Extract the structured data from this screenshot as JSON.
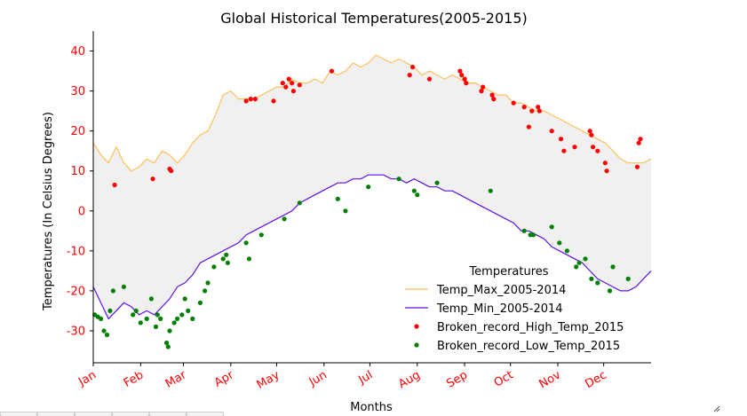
{
  "chart_data": {
    "type": "line",
    "title": "Global Historical Temperatures(2005-2015)",
    "xlabel": "Months",
    "ylabel": "Temperatures (In Celsius Degrees)",
    "ylim": [
      -38,
      45
    ],
    "xlim": [
      0,
      365
    ],
    "yticks": [
      -30,
      -20,
      -10,
      0,
      10,
      20,
      30,
      40
    ],
    "months": [
      "Jan",
      "Feb",
      "Mar",
      "Apr",
      "May",
      "Jun",
      "Jul",
      "Aug",
      "Sep",
      "Oct",
      "Nov",
      "Dec"
    ],
    "month_starts": [
      0,
      31,
      59,
      90,
      120,
      151,
      181,
      212,
      243,
      273,
      304,
      334
    ],
    "legend": {
      "title": "Temperatures",
      "placement": "lower-right"
    },
    "series": [
      {
        "name": "Temp_Max_2005-2014",
        "kind": "line",
        "color": "#ffc05a",
        "x": [
          0,
          5,
          10,
          15,
          20,
          25,
          30,
          35,
          40,
          45,
          50,
          55,
          60,
          65,
          70,
          75,
          80,
          85,
          90,
          95,
          100,
          105,
          110,
          115,
          120,
          125,
          130,
          135,
          140,
          145,
          150,
          155,
          160,
          165,
          170,
          175,
          180,
          185,
          190,
          195,
          200,
          205,
          210,
          215,
          220,
          225,
          230,
          235,
          240,
          245,
          250,
          255,
          260,
          265,
          270,
          275,
          280,
          285,
          290,
          295,
          300,
          305,
          310,
          315,
          320,
          325,
          330,
          335,
          340,
          345,
          350,
          355,
          360,
          365
        ],
        "values": [
          17,
          14,
          12,
          16,
          12,
          10,
          11,
          13,
          12,
          15,
          14,
          12,
          14,
          17,
          19,
          20,
          24,
          29,
          30,
          28,
          28,
          28,
          29,
          30,
          31,
          31,
          33,
          32,
          32,
          33,
          32,
          35,
          34,
          35,
          37,
          36,
          37,
          39,
          38,
          37,
          38,
          37,
          36,
          34,
          35,
          34,
          33,
          34,
          33,
          32,
          32,
          31,
          30,
          29,
          29,
          27,
          27,
          26,
          25,
          25,
          24,
          23,
          22,
          21,
          20,
          19,
          18,
          17,
          15,
          13,
          12,
          12,
          12,
          13
        ]
      },
      {
        "name": "Temp_Min_2005-2014",
        "kind": "line",
        "color": "#5d12e8",
        "x": [
          0,
          5,
          10,
          15,
          20,
          25,
          30,
          35,
          40,
          45,
          50,
          55,
          60,
          65,
          70,
          75,
          80,
          85,
          90,
          95,
          100,
          105,
          110,
          115,
          120,
          125,
          130,
          135,
          140,
          145,
          150,
          155,
          160,
          165,
          170,
          175,
          180,
          185,
          190,
          195,
          200,
          205,
          210,
          215,
          220,
          225,
          230,
          235,
          240,
          245,
          250,
          255,
          260,
          265,
          270,
          275,
          280,
          285,
          290,
          295,
          300,
          305,
          310,
          315,
          320,
          325,
          330,
          335,
          340,
          345,
          350,
          355,
          360,
          365
        ],
        "values": [
          -19,
          -23,
          -27,
          -25,
          -23,
          -24,
          -26,
          -25,
          -26,
          -24,
          -22,
          -19,
          -18,
          -16,
          -13,
          -12,
          -11,
          -10,
          -9,
          -8,
          -6,
          -5,
          -4,
          -3,
          -2,
          -1,
          0,
          2,
          3,
          4,
          5,
          6,
          7,
          7,
          8,
          8,
          9,
          9,
          9,
          8,
          8,
          7,
          8,
          7,
          6,
          6,
          5,
          5,
          4,
          3,
          2,
          1,
          0,
          -1,
          -2,
          -3,
          -5,
          -5,
          -6,
          -7,
          -9,
          -10,
          -11,
          -12,
          -13,
          -15,
          -17,
          -18,
          -19,
          -20,
          -20,
          -19,
          -17,
          -15
        ]
      },
      {
        "name": "Broken_record_High_Temp_2015",
        "kind": "scatter",
        "color": "#ff0000",
        "x": [
          14,
          39,
          50,
          51,
          100,
          103,
          106,
          118,
          124,
          126,
          128,
          130,
          131,
          135,
          156,
          207,
          209,
          220,
          240,
          241,
          243,
          244,
          254,
          255,
          261,
          262,
          275,
          282,
          285,
          287,
          291,
          292,
          300,
          306,
          308,
          315,
          325,
          326,
          327,
          330,
          335,
          336,
          356,
          357,
          358
        ],
        "values": [
          6.5,
          8,
          10.5,
          10,
          27.5,
          28,
          28,
          27.5,
          32,
          31,
          33,
          32,
          30,
          31.5,
          35,
          34,
          36,
          33,
          35,
          34,
          33,
          32,
          30,
          31,
          29,
          28,
          27,
          26,
          21,
          25,
          26,
          25,
          20,
          18,
          15,
          16,
          20,
          19,
          16,
          15,
          12,
          10,
          11,
          17,
          18
        ]
      },
      {
        "name": "Broken_record_Low_Temp_2015",
        "kind": "scatter",
        "color": "#008000",
        "x": [
          1,
          3,
          5,
          7,
          9,
          11,
          13,
          20,
          26,
          28,
          31,
          35,
          38,
          41,
          42,
          44,
          48,
          49,
          50,
          53,
          55,
          58,
          60,
          62,
          65,
          70,
          73,
          75,
          79,
          85,
          87,
          88,
          100,
          102,
          110,
          125,
          135,
          160,
          165,
          180,
          200,
          210,
          212,
          225,
          260,
          282,
          286,
          288,
          300,
          305,
          310,
          316,
          318,
          322,
          326,
          330,
          338,
          340,
          350
        ],
        "values": [
          -26,
          -26.5,
          -27,
          -30,
          -31,
          -25,
          -20,
          -19,
          -26,
          -25,
          -28,
          -27,
          -22,
          -29,
          -26,
          -27,
          -33,
          -34,
          -30,
          -28,
          -27,
          -26,
          -22,
          -25,
          -27,
          -23,
          -20,
          -18,
          -14,
          -12,
          -11,
          -13,
          -8,
          -12,
          -6,
          -2,
          2,
          3,
          0,
          6,
          8,
          5,
          4,
          7,
          5,
          -5,
          -6,
          -6,
          -4,
          -8,
          -10,
          -14,
          -13,
          -12,
          -17,
          -18,
          -20,
          -14,
          -17
        ]
      }
    ]
  },
  "colors": {
    "fill_between": "#f0f0f0",
    "tick_label": "#ff0000",
    "axis": "#000000"
  },
  "ui": {
    "resize_grip_icon": "resize-grip-icon"
  }
}
